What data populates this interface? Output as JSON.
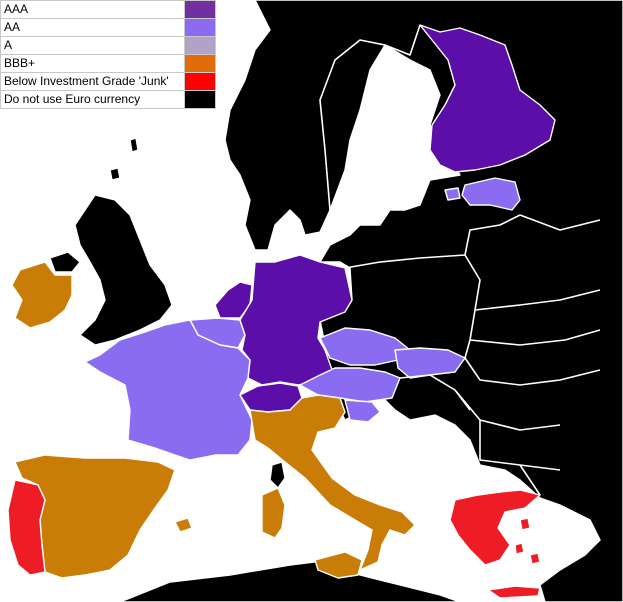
{
  "legend": [
    {
      "label": "AAA",
      "color": "#7030a0"
    },
    {
      "label": "AA",
      "color": "#8b6cf0"
    },
    {
      "label": "A",
      "color": "#b2a2c7"
    },
    {
      "label": "BBB+",
      "color": "#e26b0a"
    },
    {
      "label": "Below Investment Grade 'Junk'",
      "color": "#ff0000"
    },
    {
      "label": "Do not use Euro currency",
      "color": "#000000"
    }
  ],
  "map_colors": {
    "aaa_fill": "#5b0fa8",
    "aa_fill": "#8a6cf0",
    "bbb_fill": "#c97d07",
    "junk_fill": "#ee1c24",
    "non_euro_fill": "#000000",
    "background": "#ffffff"
  },
  "country_ratings": {
    "AAA": [
      "Finland",
      "Netherlands",
      "Germany",
      "Switzerland"
    ],
    "AA": [
      "France",
      "Belgium",
      "Luxembourg",
      "Estonia",
      "Czech Republic",
      "Slovakia",
      "Austria",
      "Slovenia"
    ],
    "BBB+": [
      "Ireland",
      "Spain",
      "Italy",
      "Sardinia",
      "Sicily"
    ],
    "Junk": [
      "Portugal",
      "Greece"
    ]
  }
}
